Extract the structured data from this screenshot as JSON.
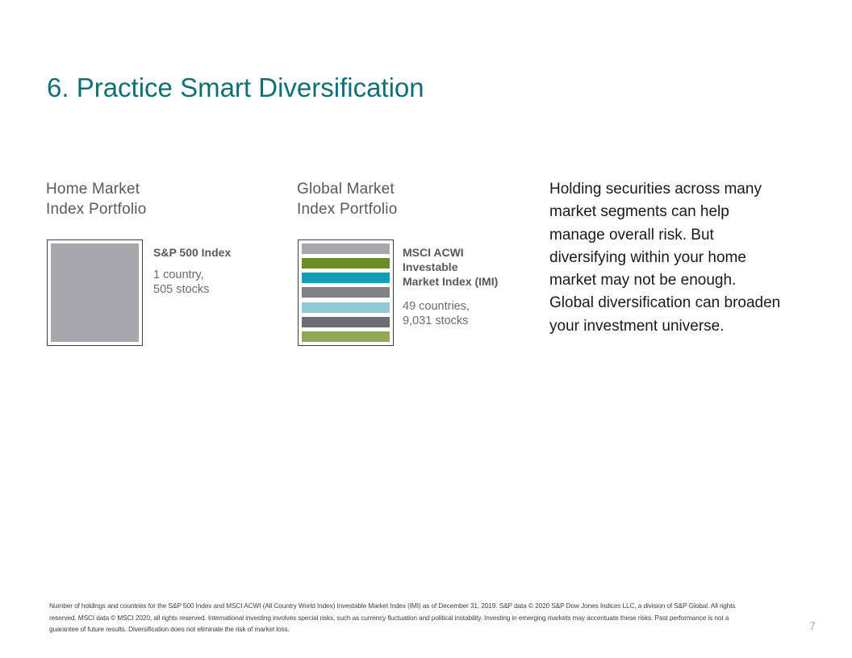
{
  "slide": {
    "title": "6. Practice Smart Diversification",
    "page_number": "7"
  },
  "home_portfolio": {
    "heading_lines": [
      "Home Market",
      "Index Portfolio"
    ],
    "index_name": "S&P 500 Index",
    "stats_lines": [
      "1 country,",
      "505 stocks"
    ],
    "block_color": "#a6a8ab"
  },
  "global_portfolio": {
    "heading_lines": [
      "Global Market",
      "Index Portfolio"
    ],
    "index_name_lines": [
      "MSCI ACWI",
      "Investable",
      "Market Index (IMI)"
    ],
    "stats_lines": [
      "49 countries,",
      "9,031 stocks"
    ],
    "stripe_colors": [
      "#a6a8ab",
      "#6b8e23",
      "#0f9eb5",
      "#808285",
      "#8fcad8",
      "#6d6e71",
      "#8fa954"
    ]
  },
  "body_text_lines": [
    "Holding securities across many",
    "market segments can help",
    "manage overall risk. But",
    "diversifying within your home",
    "market may not be enough.",
    "Global diversification can broaden",
    "your investment universe."
  ],
  "footnote_lines": [
    "Number of holdings and countries for the S&P 500 Index and MSCI ACWI (All Country World Index) Investable Market Index (IMI) as of December 31, 2019. S&P data © 2020 S&P Dow Jones Indices LLC, a division of S&P Global. All rights",
    "reserved. MSCI data © MSCI 2020, all rights reserved. International investing involves special risks, such as currency fluctuation and political instability. Investing in emerging markets may accentuate these risks. Past performance is not a",
    "guarantee of future results. Diversification does not eliminate the risk of market loss."
  ]
}
